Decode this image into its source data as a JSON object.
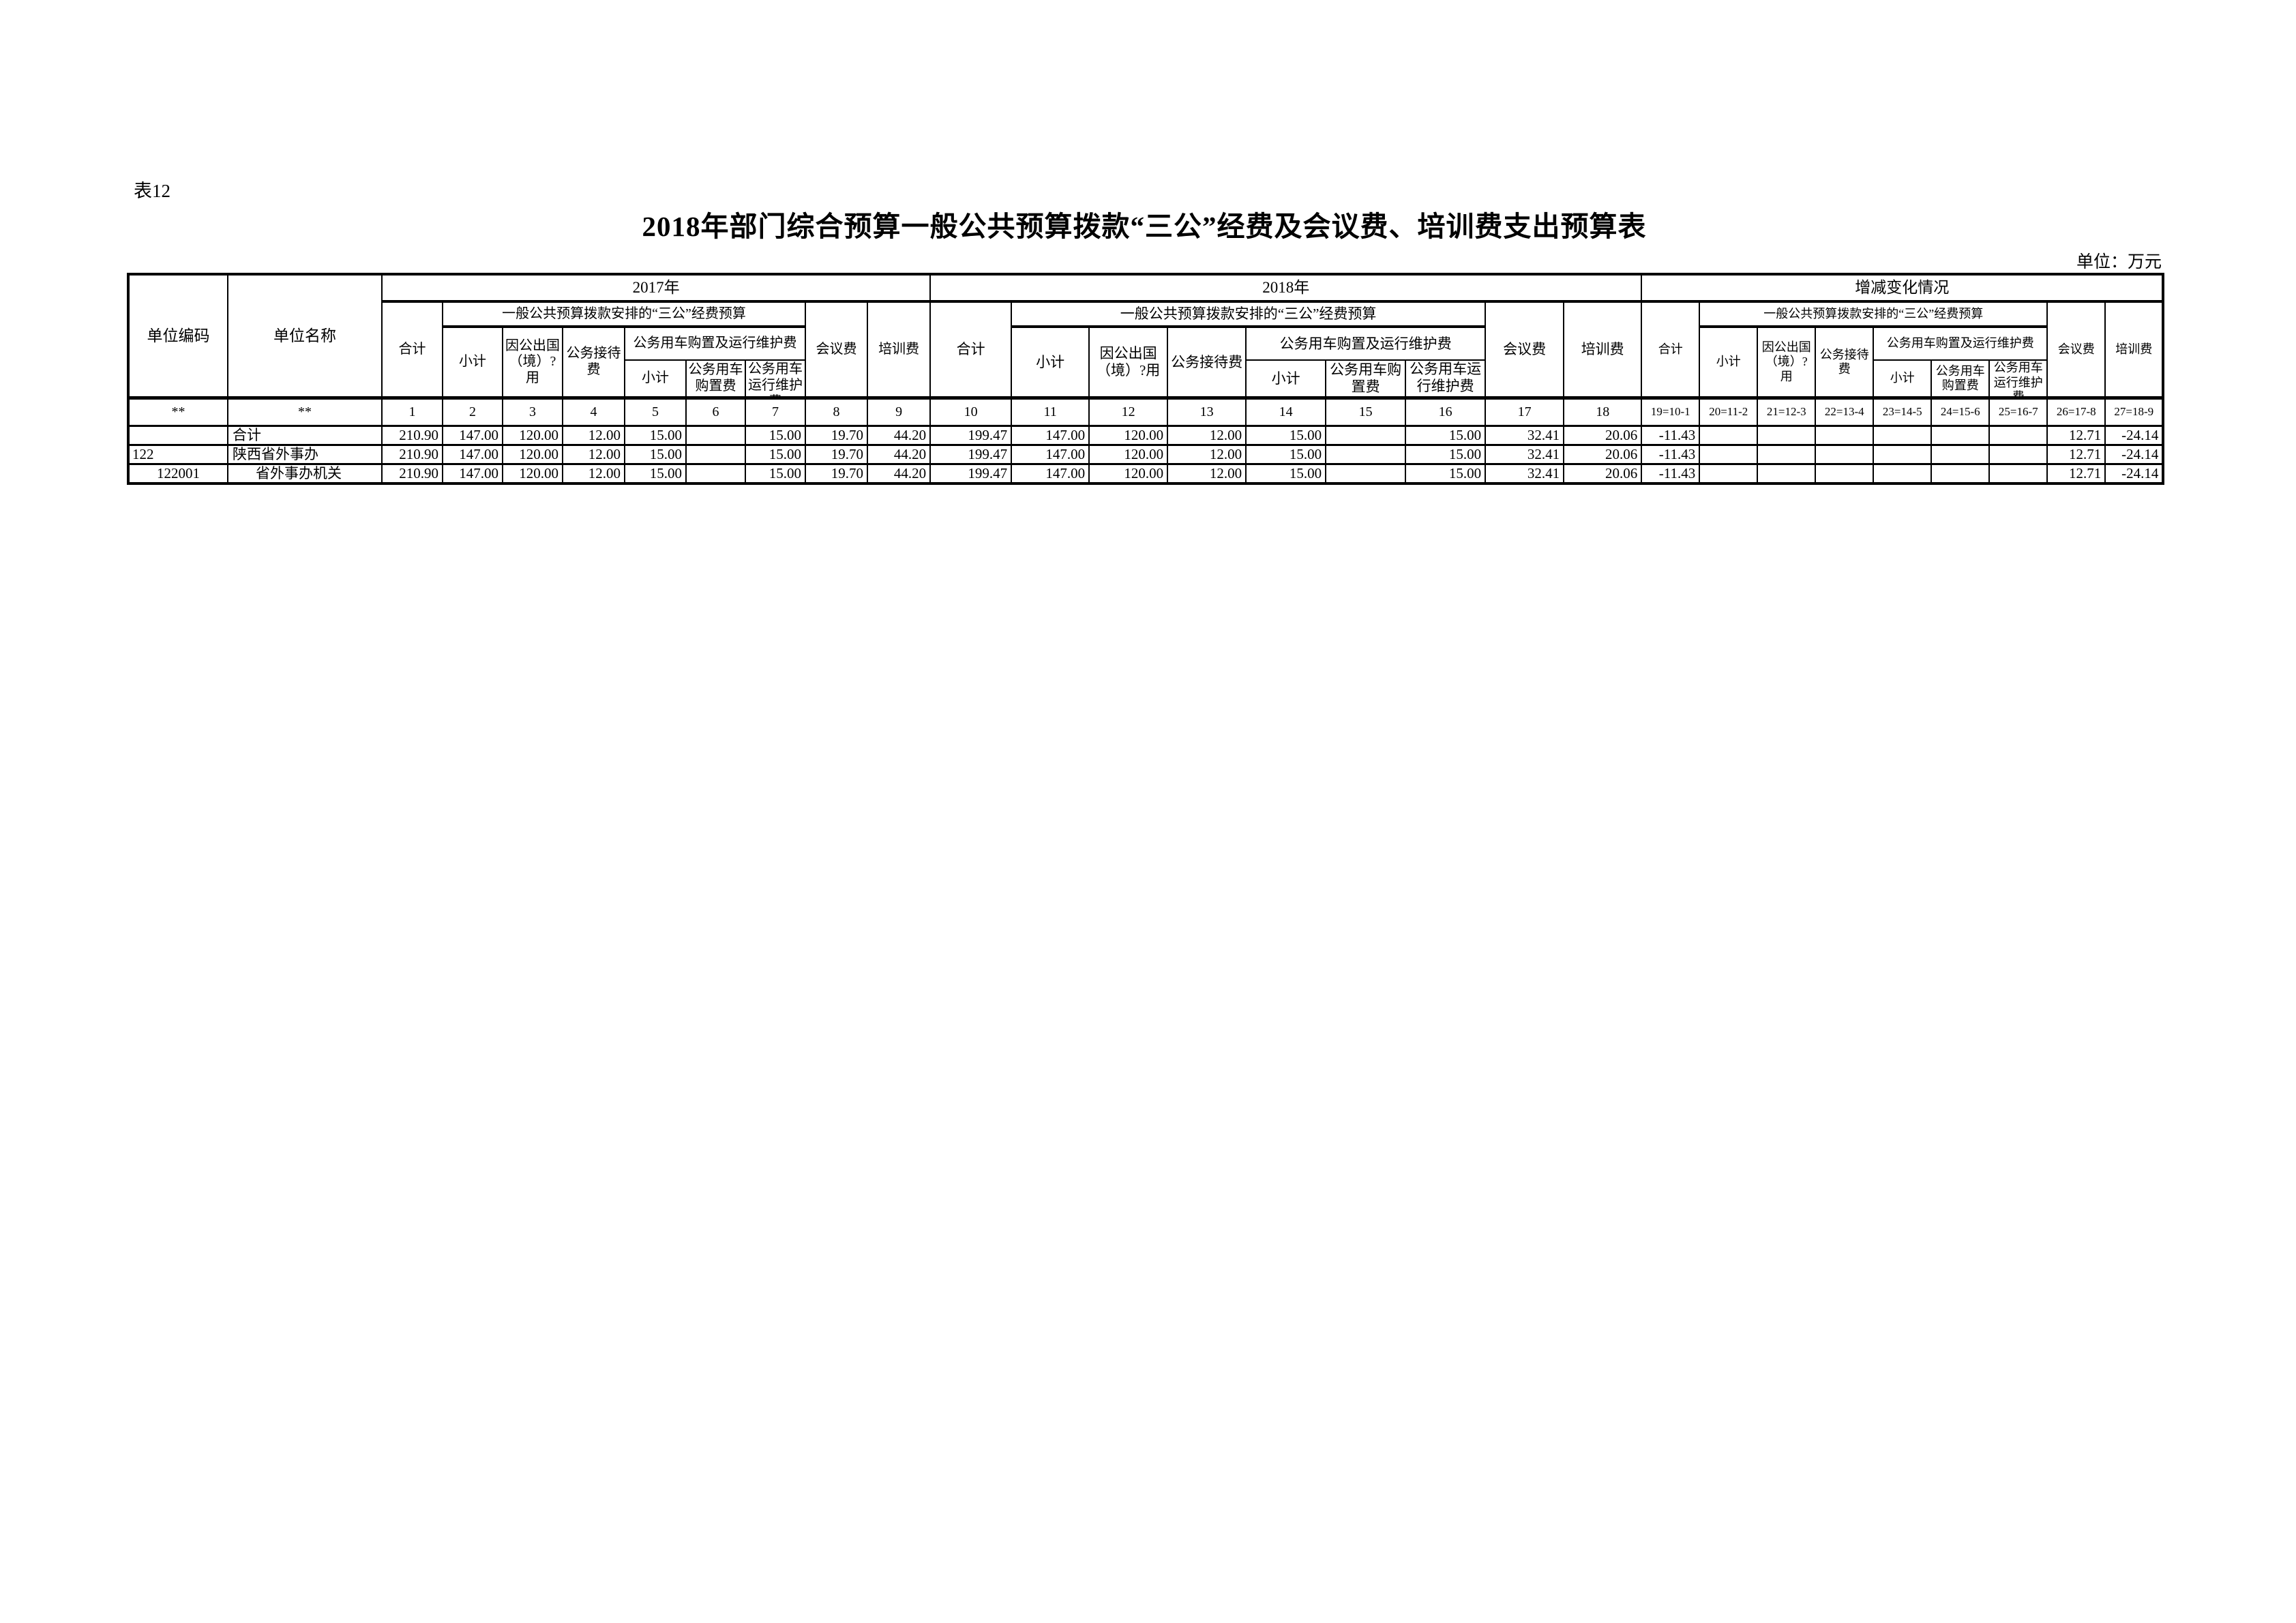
{
  "page": {
    "table_label": "表12",
    "title": "2018年部门综合预算一般公共预算拨款“三公”经费及会议费、培训费支出预算表",
    "unit_note": "单位：万元"
  },
  "table": {
    "corner": {
      "code_header": "单位编码",
      "name_header": "单位名称"
    },
    "number_row_corner": [
      "**",
      "**"
    ],
    "sections": [
      {
        "year_label": "2017年",
        "group_label": "一般公共预算拨款安排的“三公”经费预算",
        "cols": {
          "total": "合计",
          "subtotal": "小计",
          "abroad": "因公出国\n（境）?\n用",
          "reception": "公务接待\n费",
          "vehicle_group": "公务用车购置及运行维护费",
          "vehicle_subtotal": "小计",
          "vehicle_purchase": "公务用车\n购置费",
          "vehicle_maintenance": "公务用车\n运行维护\n费",
          "conference": "会议费",
          "training": "培训费"
        },
        "numbers": [
          "1",
          "2",
          "3",
          "4",
          "5",
          "6",
          "7",
          "8",
          "9"
        ]
      },
      {
        "year_label": "2018年",
        "group_label": "一般公共预算拨款安排的“三公”经费预算",
        "cols": {
          "total": "合计",
          "subtotal": "小计",
          "abroad": "因公出国\n（境）?用",
          "reception": "公务接待费",
          "vehicle_group": "公务用车购置及运行维护费",
          "vehicle_subtotal": "小计",
          "vehicle_purchase": "公务用车购\n置费",
          "vehicle_maintenance": "公务用车运\n行维护费",
          "conference": "会议费",
          "training": "培训费"
        },
        "numbers": [
          "10",
          "11",
          "12",
          "13",
          "14",
          "15",
          "16",
          "17",
          "18"
        ]
      },
      {
        "year_label": "增减变化情况",
        "group_label": "一般公共预算拨款安排的“三公”经费预算",
        "cols": {
          "total": "合计",
          "subtotal": "小计",
          "abroad": "因公出国\n（境）?\n用",
          "reception": "公务接待\n费",
          "vehicle_group": "公务用车购置及运行维护费",
          "vehicle_subtotal": "小计",
          "vehicle_purchase": "公务用车\n购置费",
          "vehicle_maintenance": "公务用车\n运行维护\n费",
          "conference": "会议费",
          "training": "培训费"
        },
        "numbers": [
          "19=10-1",
          "20=11-2",
          "21=12-3",
          "22=13-4",
          "23=14-5",
          "24=15-6",
          "25=16-7",
          "26=17-8",
          "27=18-9"
        ]
      }
    ],
    "rows": [
      {
        "code": "",
        "name": "合计",
        "indent": false,
        "values": [
          "210.90",
          "147.00",
          "120.00",
          "12.00",
          "15.00",
          "",
          "15.00",
          "19.70",
          "44.20",
          "199.47",
          "147.00",
          "120.00",
          "12.00",
          "15.00",
          "",
          "15.00",
          "32.41",
          "20.06",
          "-11.43",
          "",
          "",
          "",
          "",
          "",
          "",
          "12.71",
          "-24.14"
        ]
      },
      {
        "code": "122",
        "name": "陕西省外事办",
        "indent": false,
        "values": [
          "210.90",
          "147.00",
          "120.00",
          "12.00",
          "15.00",
          "",
          "15.00",
          "19.70",
          "44.20",
          "199.47",
          "147.00",
          "120.00",
          "12.00",
          "15.00",
          "",
          "15.00",
          "32.41",
          "20.06",
          "-11.43",
          "",
          "",
          "",
          "",
          "",
          "",
          "12.71",
          "-24.14"
        ]
      },
      {
        "code": "122001",
        "name": "省外事办机关",
        "indent": true,
        "values": [
          "210.90",
          "147.00",
          "120.00",
          "12.00",
          "15.00",
          "",
          "15.00",
          "19.70",
          "44.20",
          "199.47",
          "147.00",
          "120.00",
          "12.00",
          "15.00",
          "",
          "15.00",
          "32.41",
          "20.06",
          "-11.43",
          "",
          "",
          "",
          "",
          "",
          "",
          "12.71",
          "-24.14"
        ]
      }
    ]
  }
}
